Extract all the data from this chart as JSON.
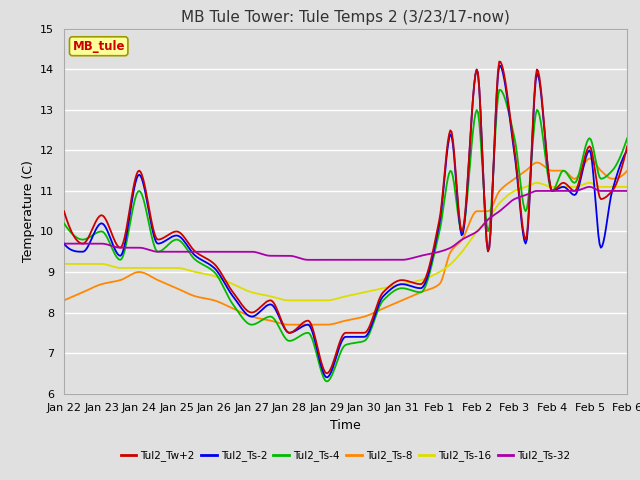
{
  "title": "MB Tule Tower: Tule Temps 2 (3/23/17-now)",
  "xlabel": "Time",
  "ylabel": "Temperature (C)",
  "ylim": [
    6.0,
    15.0
  ],
  "yticks": [
    6.0,
    7.0,
    8.0,
    9.0,
    10.0,
    11.0,
    12.0,
    13.0,
    14.0,
    15.0
  ],
  "xtick_labels": [
    "Jan 22",
    "Jan 23",
    "Jan 24",
    "Jan 25",
    "Jan 26",
    "Jan 27",
    "Jan 28",
    "Jan 29",
    "Jan 30",
    "Jan 31",
    "Feb 1",
    "Feb 2",
    "Feb 3",
    "Feb 4",
    "Feb 5",
    "Feb 6"
  ],
  "legend_label": "MB_tule",
  "series_labels": [
    "Tul2_Tw+2",
    "Tul2_Ts-2",
    "Tul2_Ts-4",
    "Tul2_Ts-8",
    "Tul2_Ts-16",
    "Tul2_Ts-32"
  ],
  "series_colors": [
    "#cc0000",
    "#0000ee",
    "#00bb00",
    "#ff8800",
    "#dddd00",
    "#aa00aa"
  ],
  "background_color": "#e0e0e0",
  "plot_background": "#e0e0e0",
  "grid_color": "#ffffff",
  "title_fontsize": 11,
  "axis_fontsize": 9,
  "tick_fontsize": 8,
  "figsize": [
    6.4,
    4.8
  ],
  "dpi": 100
}
